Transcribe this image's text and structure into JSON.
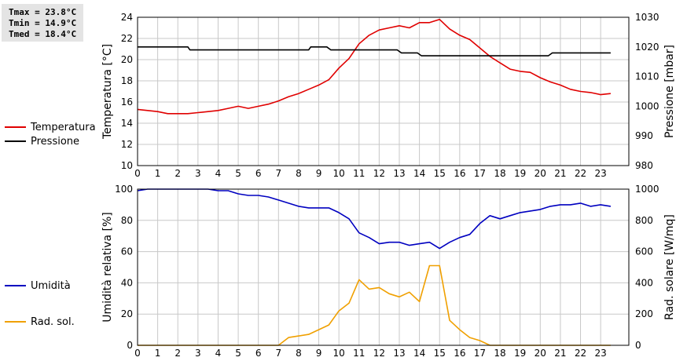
{
  "stats": {
    "tmax": "Tmax = 23.8°C",
    "tmin": "Tmin = 14.9°C",
    "tmed": "Tmed = 18.4°C"
  },
  "legend_top": [
    {
      "label": "Temperatura",
      "color": "#e00000"
    },
    {
      "label": "Pressione",
      "color": "#000000"
    }
  ],
  "legend_bottom": [
    {
      "label": "Umidità",
      "color": "#0000c0"
    },
    {
      "label": "Rad. sol.",
      "color": "#f0a000"
    }
  ],
  "chart_data": [
    {
      "type": "line",
      "xlim": [
        0,
        24
      ],
      "x_ticks": [
        0,
        1,
        2,
        3,
        4,
        5,
        6,
        7,
        8,
        9,
        10,
        11,
        12,
        13,
        14,
        15,
        16,
        17,
        18,
        19,
        20,
        21,
        22,
        23
      ],
      "grid": true,
      "y_left": {
        "label": "Temperatura [°C]",
        "ylim": [
          10,
          24
        ],
        "ticks": [
          10,
          12,
          14,
          16,
          18,
          20,
          22,
          24
        ]
      },
      "y_right": {
        "label": "Pressione [mbar]",
        "ylim": [
          980,
          1030
        ],
        "ticks": [
          980,
          990,
          1000,
          1010,
          1020,
          1030
        ]
      },
      "series": [
        {
          "name": "Temperatura",
          "axis": "left",
          "color": "#e00000",
          "x": [
            0,
            0.5,
            1,
            1.5,
            2,
            2.5,
            3,
            3.5,
            4,
            4.5,
            5,
            5.5,
            6,
            6.5,
            7,
            7.5,
            8,
            8.5,
            9,
            9.5,
            10,
            10.5,
            11,
            11.5,
            12,
            12.5,
            13,
            13.5,
            14,
            14.5,
            15,
            15.5,
            16,
            16.5,
            17,
            17.5,
            18,
            18.5,
            19,
            19.5,
            20,
            20.5,
            21,
            21.5,
            22,
            22.5,
            23,
            23.5
          ],
          "values": [
            15.3,
            15.2,
            15.1,
            14.9,
            14.9,
            14.9,
            15.0,
            15.1,
            15.2,
            15.4,
            15.6,
            15.4,
            15.6,
            15.8,
            16.1,
            16.5,
            16.8,
            17.2,
            17.6,
            18.1,
            19.2,
            20.1,
            21.5,
            22.3,
            22.8,
            23.0,
            23.2,
            23.0,
            23.5,
            23.5,
            23.8,
            22.9,
            22.3,
            21.9,
            21.1,
            20.3,
            19.7,
            19.1,
            18.9,
            18.8,
            18.3,
            17.9,
            17.6,
            17.2,
            17.0,
            16.9,
            16.7,
            16.8
          ]
        },
        {
          "name": "Pressione",
          "axis": "right",
          "color": "#000000",
          "x": [
            0,
            2.5,
            2.6,
            8.5,
            8.6,
            9.4,
            9.6,
            12.9,
            13.1,
            13.9,
            14.1,
            20.4,
            20.6,
            23.5
          ],
          "values": [
            1020,
            1020,
            1019,
            1019,
            1020,
            1020,
            1019,
            1019,
            1018,
            1018,
            1017,
            1017,
            1018,
            1018
          ]
        }
      ]
    },
    {
      "type": "line",
      "xlim": [
        0,
        24
      ],
      "x_ticks": [
        0,
        1,
        2,
        3,
        4,
        5,
        6,
        7,
        8,
        9,
        10,
        11,
        12,
        13,
        14,
        15,
        16,
        17,
        18,
        19,
        20,
        21,
        22,
        23
      ],
      "grid": true,
      "y_left": {
        "label": "Umidità relativa [%]",
        "ylim": [
          0,
          100
        ],
        "ticks": [
          0,
          20,
          40,
          60,
          80,
          100
        ]
      },
      "y_right": {
        "label": "Rad. solare [W/mq]",
        "ylim": [
          0,
          1000
        ],
        "ticks": [
          0,
          200,
          400,
          600,
          800,
          1000
        ]
      },
      "series": [
        {
          "name": "Umidità",
          "axis": "left",
          "color": "#0000c0",
          "x": [
            0,
            0.5,
            1,
            1.5,
            2,
            2.5,
            3,
            3.5,
            4,
            4.5,
            5,
            5.5,
            6,
            6.5,
            7,
            7.5,
            8,
            8.5,
            9,
            9.5,
            10,
            10.5,
            11,
            11.5,
            12,
            12.5,
            13,
            13.5,
            14,
            14.5,
            15,
            15.5,
            16,
            16.5,
            17,
            17.5,
            18,
            18.5,
            19,
            19.5,
            20,
            20.5,
            21,
            21.5,
            22,
            22.5,
            23,
            23.5
          ],
          "values": [
            99,
            100,
            100,
            100,
            100,
            100,
            100,
            100,
            99,
            99,
            97,
            96,
            96,
            95,
            93,
            91,
            89,
            88,
            88,
            88,
            85,
            81,
            72,
            69,
            65,
            66,
            66,
            64,
            65,
            66,
            62,
            66,
            69,
            71,
            78,
            83,
            81,
            83,
            85,
            86,
            87,
            89,
            90,
            90,
            91,
            89,
            90,
            89
          ]
        },
        {
          "name": "Rad. sol.",
          "axis": "right",
          "color": "#f0a000",
          "x": [
            0,
            7,
            7.5,
            8,
            8.5,
            9,
            9.5,
            10,
            10.5,
            11,
            11.5,
            12,
            12.5,
            13,
            13.5,
            14,
            14.5,
            15,
            15.5,
            16,
            16.5,
            17,
            17.5,
            18,
            23.5
          ],
          "values": [
            0,
            0,
            50,
            60,
            70,
            100,
            130,
            220,
            270,
            420,
            360,
            370,
            330,
            310,
            340,
            280,
            510,
            510,
            160,
            100,
            50,
            30,
            0,
            0,
            0
          ]
        }
      ]
    }
  ]
}
